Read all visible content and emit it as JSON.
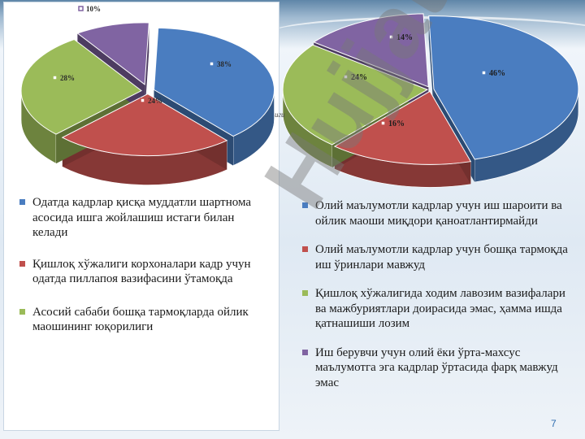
{
  "chart_data": [
    {
      "type": "pie",
      "title": "",
      "slices": [
        {
          "label": "Одатда кадрлар қисқа муддатли шартнома асосида ишга жойлашиш истаги билан келади",
          "value": 38,
          "value_label": "38%",
          "color": "#4a7dc0"
        },
        {
          "label": "Қишлоқ хўжалиги корхоналари кадр учун одатда пиллапоя вазифасини ўтамоқда",
          "value": 24,
          "value_label": "24%",
          "color": "#c0504d"
        },
        {
          "label": "Асосий сабаби бошқа тармоқларда ойлик маошининг юқорилиги",
          "value": 28,
          "value_label": "28%",
          "color": "#9bbb59"
        },
        {
          "label": "",
          "value": 10,
          "value_label": "10%",
          "color": "#8064a2"
        }
      ]
    },
    {
      "type": "pie",
      "title": "",
      "slices": [
        {
          "label": "Олий маълумотли кадрлар учун иш шароити ва ойлик маоши миқдори қаноатлантирмайди",
          "value": 46,
          "value_label": "46%",
          "color": "#4a7dc0"
        },
        {
          "label": "Олий маълумотли кадрлар учун бошқа тармоқда иш ўринлари мавжуд",
          "value": 16,
          "value_label": "16%",
          "color": "#c0504d"
        },
        {
          "label": "Қишлоқ хўжалигида ходим лавозим вазифалари ва мажбуриятлари доирасида эмас, ҳамма ишда қатнашиши лозим",
          "value": 24,
          "value_label": "24%",
          "color": "#9bbb59"
        },
        {
          "label": "Иш берувчи учун олий ёки ўрта-махсус маълумотга эга кадрлар ўртасида фарқ мавжуд эмас",
          "value": 14,
          "value_label": "14%",
          "color": "#8064a2"
        }
      ]
    }
  ],
  "fragment_text": "иги",
  "watermark": "Hujjat",
  "page_number": "7"
}
